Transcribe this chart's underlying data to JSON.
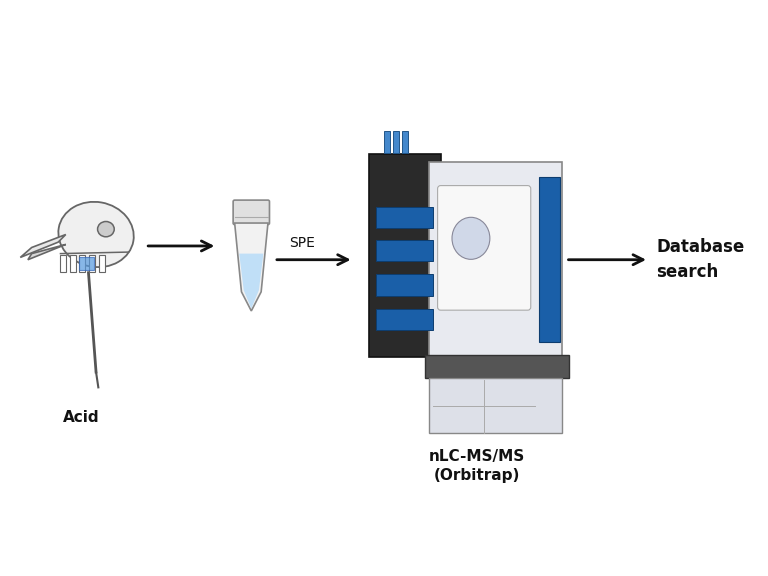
{
  "background_color": "#f5f5f5",
  "figure_width": 7.68,
  "figure_height": 5.76,
  "dpi": 100,
  "labels": {
    "acid": "Acid",
    "spe": "SPE",
    "instrument": "nLC-MS/MS\n(Orbitrap)",
    "database": "Database\nsearch"
  },
  "arrow_color": "#111111",
  "label_fontsize": 11,
  "label_fontweight": "bold",
  "spe_fontsize": 10,
  "spe_fontweight": "normal",
  "bg_white": "#ffffff",
  "tube_body_color": "#e8e8e8",
  "tube_liquid_color": "#aad4f5",
  "tube_cap_color": "#cccccc",
  "skull_color": "#dddddd",
  "skull_outline": "#555555",
  "instrument_blue": "#1a5fa8",
  "instrument_gray": "#d0d0d0",
  "instrument_dark": "#444444",
  "instrument_light": "#f0f0f0"
}
